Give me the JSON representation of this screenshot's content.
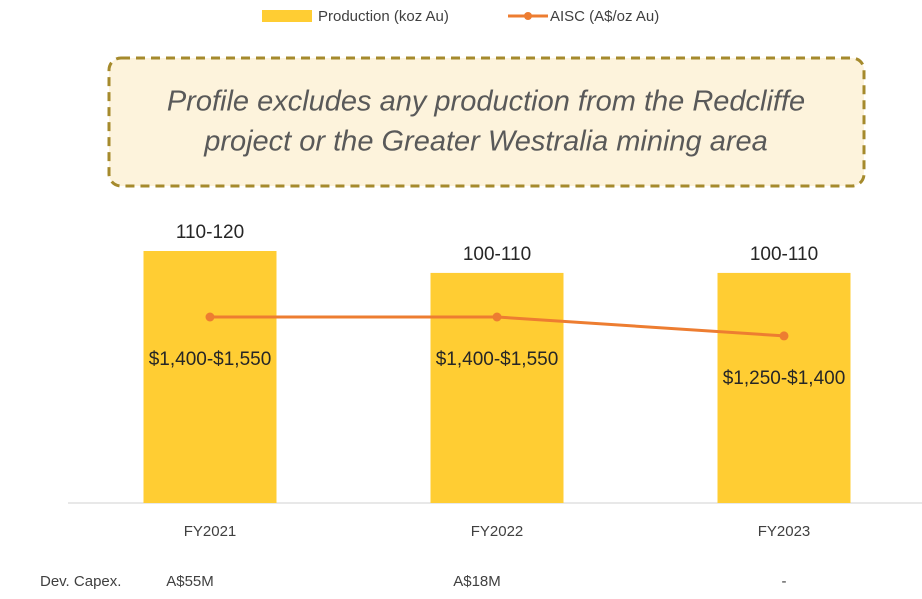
{
  "chart_data": {
    "type": "bar-line",
    "categories": [
      "FY2021",
      "FY2022",
      "FY2023"
    ],
    "series": [
      {
        "name": "Production (koz Au)",
        "type": "bar",
        "color": "#ffcd33",
        "values": [
          115,
          105,
          105
        ],
        "value_labels": [
          "110-120",
          "100-110",
          "100-110"
        ]
      },
      {
        "name": "AISC (A$/oz Au)",
        "type": "line",
        "axis": "y2",
        "color": "#ed7d31",
        "values": [
          1475,
          1475,
          1325
        ],
        "value_labels": [
          "$1,400-$1,550",
          "$1,400-$1,550",
          "$1,250-$1,400"
        ]
      }
    ],
    "annotation": [
      "Profile excludes any production from the Redcliffe",
      "project or the Greater Westralia mining area"
    ],
    "table_row": {
      "label": "Dev. Capex.",
      "values": [
        "A$55M",
        "A$18M",
        "-"
      ]
    },
    "legend": "top"
  }
}
